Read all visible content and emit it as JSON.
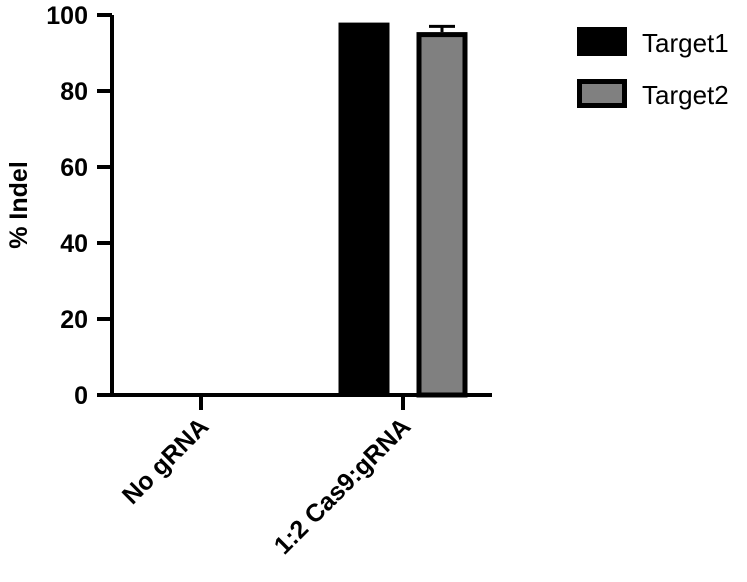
{
  "chart_data": {
    "type": "bar",
    "title": "",
    "xlabel": "",
    "ylabel": "% Indel",
    "ylim": [
      0,
      100
    ],
    "yticks": [
      0,
      20,
      40,
      60,
      80,
      100
    ],
    "ytick_labels": [
      "0",
      "20",
      "40",
      "60",
      "80",
      "100"
    ],
    "categories": [
      "No gRNA",
      "1:2 Cas9:gRNA"
    ],
    "series": [
      {
        "name": "Target1",
        "color": "#000000",
        "values": [
          0,
          98
        ],
        "error": [
          0,
          0
        ]
      },
      {
        "name": "Target2",
        "color": "#808080",
        "values": [
          0,
          95.5
        ],
        "error": [
          0,
          1.5
        ]
      }
    ],
    "legend": {
      "position": "right",
      "entries": [
        "Target1",
        "Target2"
      ]
    },
    "grid": false
  }
}
